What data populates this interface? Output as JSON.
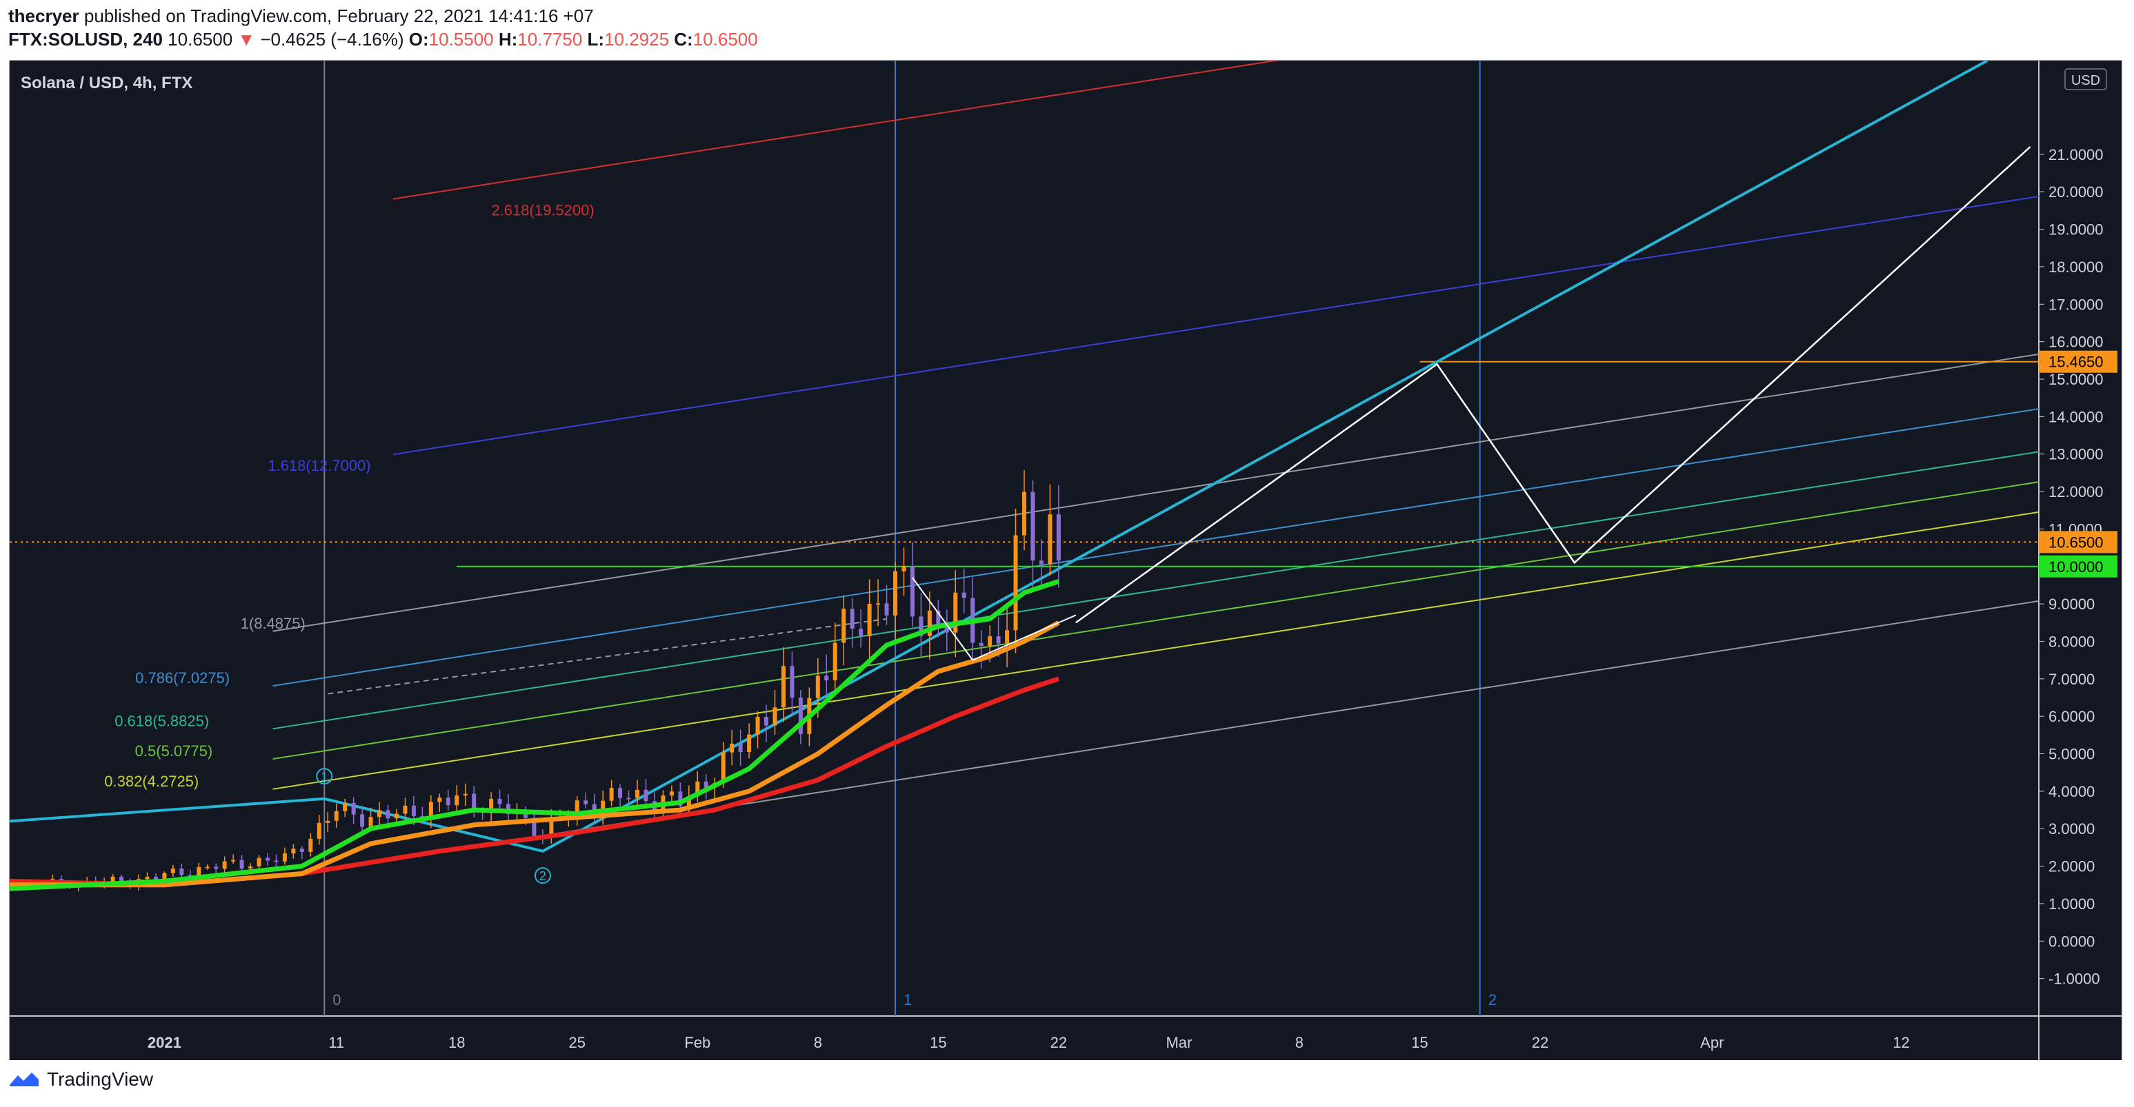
{
  "header": {
    "author": "thecryer",
    "published": "published on TradingView.com, February 22, 2021 14:41:16 +07",
    "symbol": "FTX:SOLUSD, 240",
    "last": "10.6500",
    "arrow": "▼",
    "change": "−0.4625 (−4.16%)",
    "o_label": "O:",
    "o": "10.5500",
    "h_label": "H:",
    "h": "10.7750",
    "l_label": "L:",
    "l": "10.2925",
    "c_label": "C:",
    "c": "10.6500"
  },
  "footer": {
    "brand": "TradingView"
  },
  "colors": {
    "background": "#131722",
    "ema_green": "#22e022",
    "ema_orange": "#f7931a",
    "ema_red": "#e8221f",
    "trendline_cyan": "#26b5d3",
    "fib_1618": "#3a3fd6",
    "fib_2618": "#d32f2f",
    "label_orange": "#f7931a",
    "label_green": "#22e022"
  },
  "chart_data": {
    "type": "line",
    "title": "Solana / USD, 4h, FTX",
    "currency_badge": "USD",
    "x_ticks": [
      "2021",
      "11",
      "18",
      "25",
      "Feb",
      "8",
      "15",
      "22",
      "Mar",
      "8",
      "15",
      "22",
      "Apr",
      "12"
    ],
    "x_tick_days": [
      0,
      10,
      17,
      24,
      31,
      38,
      45,
      52,
      59,
      66,
      73,
      80,
      90,
      101
    ],
    "xlim_days": [
      -9,
      109
    ],
    "y_ticks": [
      "-1.0000",
      "0.0000",
      "1.0000",
      "2.0000",
      "3.0000",
      "4.0000",
      "5.0000",
      "6.0000",
      "7.0000",
      "8.0000",
      "9.0000",
      "10.0000",
      "11.0000",
      "12.0000",
      "13.0000",
      "14.0000",
      "15.0000",
      "16.0000",
      "17.0000",
      "18.0000",
      "19.0000",
      "20.0000",
      "21.0000"
    ],
    "ylim": [
      -2.0,
      23.5
    ],
    "price_labels": [
      {
        "value": 15.465,
        "text": "15.4650",
        "color": "#f7931a"
      },
      {
        "value": 10.65,
        "text": "10.6500",
        "color": "#f7931a"
      },
      {
        "value": 10.0,
        "text": "10.0000",
        "color": "#22e022"
      }
    ],
    "vertical_markers": [
      {
        "day": 9.3,
        "label": "0",
        "color": "#787b86"
      },
      {
        "day": 42.5,
        "label": "1",
        "color": "#2f7bd0"
      },
      {
        "day": 76.5,
        "label": "2",
        "color": "#2f7bd0"
      }
    ],
    "fib_levels": [
      {
        "ratio": "0.382",
        "text": "0.382(4.2725)",
        "value": 4.2725,
        "color": "#c8d42a"
      },
      {
        "ratio": "0.5",
        "text": "0.5(5.0775)",
        "value": 5.0775,
        "color": "#6bc43a"
      },
      {
        "ratio": "0.618",
        "text": "0.618(5.8825)",
        "value": 5.8825,
        "color": "#2eb88a"
      },
      {
        "ratio": "0.786",
        "text": "0.786(7.0275)",
        "value": 7.0275,
        "color": "#3d8fd0"
      },
      {
        "ratio": "1",
        "text": "1(8.4875)",
        "value": 8.4875,
        "color": "#9598a1"
      },
      {
        "ratio": "1.618",
        "text": "1.618(12.7000)",
        "value": 12.7,
        "color": "#3a3fd6"
      },
      {
        "ratio": "2.618",
        "text": "2.618(19.5200)",
        "value": 19.52,
        "color": "#d32f2f"
      }
    ],
    "wave_labels": [
      "1",
      "2"
    ],
    "price_series": {
      "name": "SOLUSD",
      "x_days": [
        -9,
        -2,
        3,
        7,
        9,
        10,
        12,
        14,
        17,
        20,
        22,
        24,
        27,
        30,
        32,
        34,
        36,
        37,
        38,
        39,
        40,
        41,
        42.5,
        44,
        46,
        48,
        49,
        50,
        51,
        51.5,
        52
      ],
      "close": [
        1.5,
        1.6,
        2.0,
        2.2,
        3.0,
        3.5,
        3.3,
        3.4,
        3.8,
        3.5,
        2.9,
        3.6,
        3.9,
        3.7,
        4.5,
        5.5,
        6.8,
        5.8,
        7.0,
        8.0,
        8.3,
        8.8,
        9.6,
        8.5,
        8.8,
        7.9,
        8.6,
        11.5,
        10.2,
        11.1,
        10.65
      ]
    },
    "ema_fast": {
      "x_days": [
        -9,
        0,
        8,
        12,
        18,
        24,
        30,
        34,
        38,
        42,
        45,
        48,
        50,
        52
      ],
      "y": [
        1.4,
        1.6,
        2.0,
        3.0,
        3.5,
        3.4,
        3.7,
        4.6,
        6.2,
        7.9,
        8.4,
        8.6,
        9.3,
        9.6
      ]
    },
    "ema_mid": {
      "x_days": [
        -9,
        0,
        8,
        12,
        18,
        24,
        30,
        34,
        38,
        42,
        45,
        48,
        50,
        52
      ],
      "y": [
        1.5,
        1.5,
        1.8,
        2.6,
        3.1,
        3.3,
        3.5,
        4.0,
        5.0,
        6.3,
        7.2,
        7.6,
        8.0,
        8.5
      ]
    },
    "ema_slow": {
      "x_days": [
        -9,
        0,
        8,
        16,
        24,
        32,
        38,
        42,
        46,
        50,
        52
      ],
      "y": [
        1.6,
        1.5,
        1.8,
        2.4,
        2.9,
        3.5,
        4.3,
        5.2,
        6.0,
        6.7,
        7.0
      ]
    },
    "projection_path": {
      "x_days": [
        53,
        74,
        82,
        108.5
      ],
      "y": [
        8.5,
        15.4,
        10.1,
        21.2
      ]
    }
  }
}
